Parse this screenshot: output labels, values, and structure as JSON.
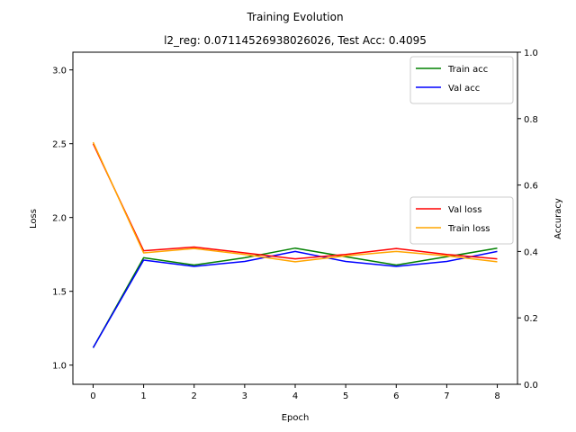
{
  "chart_data": {
    "type": "line",
    "title": "Training Evolution",
    "subtitle": "l2_reg: 0.07114526938026026, Test Acc: 0.4095",
    "xlabel": "Epoch",
    "ylabel_left": "Loss",
    "ylabel_right": "Accuracy",
    "x": [
      0,
      1,
      2,
      3,
      4,
      5,
      6,
      7,
      8
    ],
    "xlim": [
      -0.4,
      8.4
    ],
    "ylim_left": [
      0.87,
      3.12
    ],
    "ylim_right": [
      0.0,
      1.0
    ],
    "xticks": [
      "0",
      "1",
      "2",
      "3",
      "4",
      "5",
      "6",
      "7",
      "8"
    ],
    "yticks_left": [
      "1.0",
      "1.5",
      "2.0",
      "2.5",
      "3.0"
    ],
    "yticks_right": [
      "0.0",
      "0.2",
      "0.4",
      "0.6",
      "0.8",
      "1.0"
    ],
    "grid": false,
    "series": [
      {
        "name": "Train acc",
        "axis": "right",
        "color": "#008000",
        "values": [
          0.11,
          0.381,
          0.359,
          0.381,
          0.41,
          0.384,
          0.359,
          0.384,
          0.41
        ]
      },
      {
        "name": "Val acc",
        "axis": "right",
        "color": "#0000ff",
        "values": [
          0.11,
          0.374,
          0.355,
          0.37,
          0.4,
          0.37,
          0.355,
          0.37,
          0.4
        ]
      },
      {
        "name": "Val loss",
        "axis": "left",
        "color": "#ff0000",
        "values": [
          2.5,
          1.775,
          1.8,
          1.76,
          1.72,
          1.75,
          1.79,
          1.75,
          1.72
        ]
      },
      {
        "name": "Train loss",
        "axis": "left",
        "color": "#ffa500",
        "values": [
          2.51,
          1.76,
          1.79,
          1.75,
          1.7,
          1.74,
          1.77,
          1.74,
          1.7
        ]
      }
    ],
    "legends": [
      {
        "placement": "top-right",
        "entries": [
          "Train acc",
          "Val acc"
        ]
      },
      {
        "placement": "center-right",
        "entries": [
          "Val loss",
          "Train loss"
        ]
      }
    ]
  }
}
